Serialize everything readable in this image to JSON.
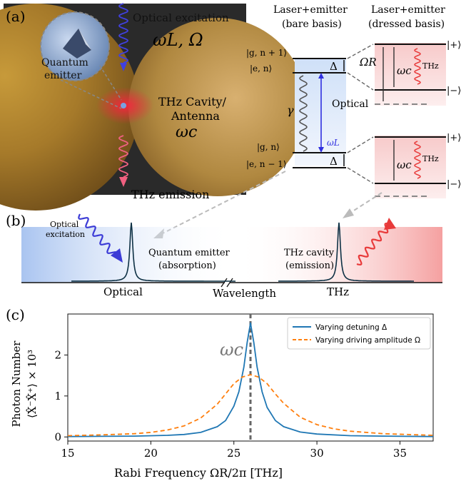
{
  "panel_a": {
    "label": "(a)",
    "optical_excitation": "Optical excitation",
    "omega_L_Omega": "ωL, Ω",
    "quantum_emitter": "Quantum emitter",
    "thz_cavity_line1": "THz Cavity/",
    "thz_cavity_line2": "Antenna",
    "omega_c": "ωc",
    "thz_emission": "THz emission",
    "bare_title_1": "Laser+emitter",
    "bare_title_2": "(bare basis)",
    "dressed_title_1": "Laser+emitter",
    "dressed_title_2": "(dressed basis)",
    "ket_g_n1": "|g, n + 1⟩",
    "ket_e_n": "|e, n⟩",
    "ket_g_n": "|g, n⟩",
    "ket_e_nm1": "|e, n − 1⟩",
    "ket_plus": "|+⟩",
    "ket_minus": "|−⟩",
    "delta": "Δ",
    "gamma": "γ",
    "optical_label": "Optical",
    "omega_L": "ωL",
    "omega_R": "ΩR",
    "thz_small": "THz"
  },
  "panel_b": {
    "label": "(b)",
    "optical_excitation_1": "Optical",
    "optical_excitation_2": "excitation",
    "qe_1": "Quantum emitter",
    "qe_2": "(absorption)",
    "thz_cav_1": "THz cavity",
    "thz_cav_2": "(emission)",
    "optical": "Optical",
    "wavelength": "Wavelength",
    "thz": "THz"
  },
  "colors": {
    "blue_series": "#1f77b4",
    "orange_series": "#ff7f0e",
    "excitation_blue": "#3b3bd6",
    "emission_red": "#e83a3a",
    "dashed_gray": "#666666"
  },
  "chart_data": {
    "label": "(c)",
    "type": "line",
    "xlabel": "Rabi Frequency  ΩR/2π [THz]",
    "ylabel_1": "Photon Number",
    "ylabel_2": "⟨X̂⁻X̂⁺⟩ × 10³",
    "xlim": [
      15,
      37
    ],
    "ylim": [
      -0.1,
      3.0
    ],
    "xticks": [
      15,
      20,
      25,
      30,
      35
    ],
    "yticks": [
      0,
      1,
      2
    ],
    "grid": false,
    "legend_position": "top-right",
    "annotation": "ωc",
    "vline_x": 26,
    "series": [
      {
        "name": "Varying detuning Δ",
        "color": "#1f77b4",
        "style": "solid",
        "x": [
          15,
          17,
          19,
          21,
          22,
          23,
          24,
          24.5,
          25,
          25.3,
          25.6,
          25.8,
          26,
          26.2,
          26.4,
          26.7,
          27,
          27.5,
          28,
          29,
          30,
          32,
          34,
          37
        ],
        "y": [
          0.01,
          0.015,
          0.02,
          0.04,
          0.06,
          0.11,
          0.25,
          0.4,
          0.75,
          1.1,
          1.7,
          2.3,
          2.78,
          2.3,
          1.7,
          1.1,
          0.72,
          0.4,
          0.25,
          0.12,
          0.07,
          0.03,
          0.02,
          0.01
        ]
      },
      {
        "name": "Varying driving amplitude Ω",
        "color": "#ff7f0e",
        "style": "dashed",
        "x": [
          15,
          17,
          19,
          20,
          21,
          22,
          23,
          24,
          24.5,
          25,
          25.5,
          26,
          26.5,
          27,
          27.5,
          28,
          29,
          30,
          31,
          32,
          34,
          37
        ],
        "y": [
          0.03,
          0.05,
          0.08,
          0.11,
          0.17,
          0.27,
          0.46,
          0.8,
          1.05,
          1.3,
          1.46,
          1.52,
          1.46,
          1.3,
          1.05,
          0.82,
          0.48,
          0.3,
          0.2,
          0.14,
          0.08,
          0.04
        ]
      }
    ]
  }
}
